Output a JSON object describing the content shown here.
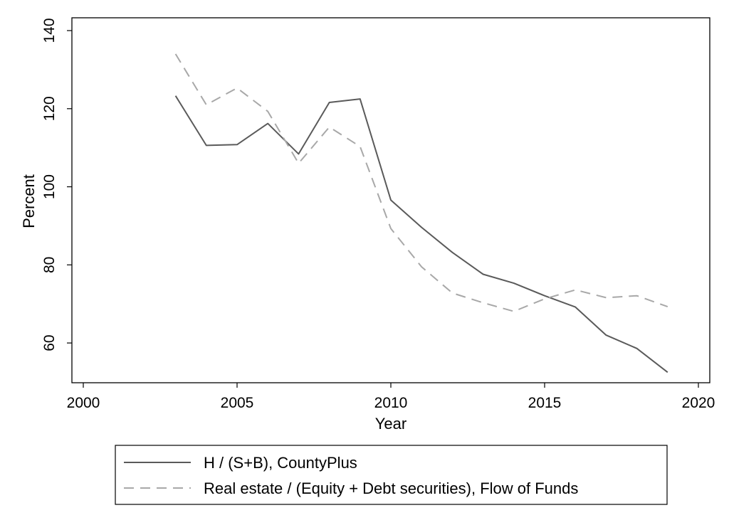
{
  "chart_data": {
    "type": "line",
    "xlabel": "Year",
    "ylabel": "Percent",
    "xlim": [
      2000,
      2020
    ],
    "ylim": [
      50,
      140
    ],
    "xticks": [
      "2000",
      "2005",
      "2010",
      "2015",
      "2020"
    ],
    "yticks": [
      "60",
      "80",
      "100",
      "120",
      "140"
    ],
    "grid": false,
    "legend_position": "bottom",
    "series": [
      {
        "name": "H / (S+B), CountyPlus",
        "style": "solid",
        "color": "#5a5a5a",
        "x": [
          2003,
          2004,
          2005,
          2006,
          2007,
          2008,
          2009,
          2010,
          2011,
          2012,
          2013,
          2014,
          2015,
          2016,
          2017,
          2018,
          2019
        ],
        "y": [
          123.3,
          110.6,
          110.8,
          116.2,
          108.4,
          121.6,
          122.5,
          96.6,
          89.6,
          83.2,
          77.6,
          75.3,
          72.1,
          69.2,
          62.0,
          58.6,
          52.5
        ]
      },
      {
        "name": "Real estate / (Equity + Debt securities), Flow of Funds",
        "style": "dashed",
        "color": "#a8a8a8",
        "x": [
          2003,
          2004,
          2005,
          2006,
          2007,
          2008,
          2009,
          2010,
          2011,
          2012,
          2013,
          2014,
          2015,
          2016,
          2017,
          2018,
          2019
        ],
        "y": [
          134.0,
          121.0,
          125.3,
          119.3,
          106.0,
          115.3,
          110.3,
          89.3,
          79.5,
          72.8,
          70.3,
          68.1,
          71.3,
          73.6,
          71.6,
          72.1,
          69.3
        ]
      }
    ]
  }
}
